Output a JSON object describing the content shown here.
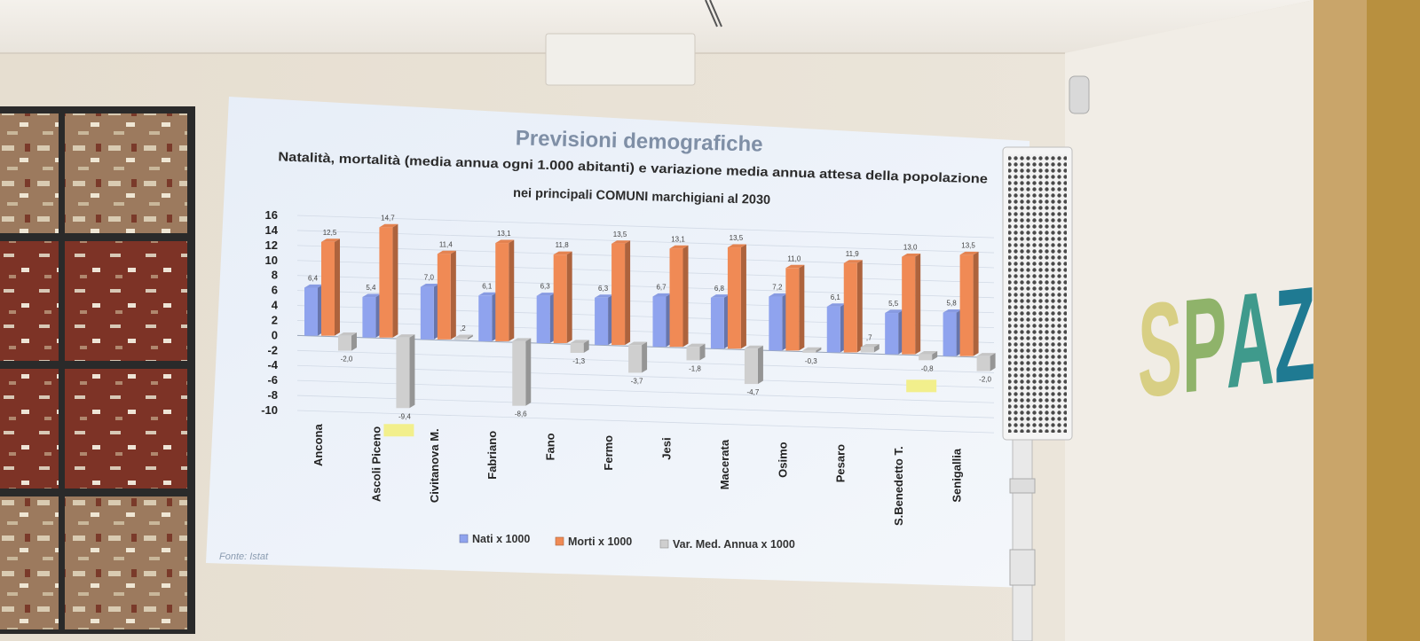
{
  "slide": {
    "title": "Previsioni demografiche",
    "subtitle_line1": "Natalità, mortalità (media annua ogni 1.000 abitanti) e variazione media annua attesa della popolazione",
    "subtitle_line2": "nei principali COMUNI marchigiani al 2030",
    "source": "Fonte: Istat"
  },
  "wall": {
    "brand_text": "SPAZ",
    "brand_colors": [
      "#d8cf84",
      "#8fb36a",
      "#3f9a8c",
      "#1f7a92"
    ]
  },
  "chart_data": {
    "type": "bar",
    "title": "Previsioni demografiche",
    "subtitle": "Natalità, mortalità (media annua ogni 1.000 abitanti) e variazione media annua attesa della popolazione nei principali COMUNI marchigiani al 2030",
    "categories": [
      "Ancona",
      "Ascoli Piceno",
      "Civitanova M.",
      "Fabriano",
      "Fano",
      "Fermo",
      "Jesi",
      "Macerata",
      "Osimo",
      "Pesaro",
      "S.Benedetto T.",
      "Senigallia"
    ],
    "series": [
      {
        "name": "Nati x 1000",
        "color": "#8fa3ee",
        "values": [
          6.4,
          5.4,
          7.0,
          6.1,
          6.3,
          6.3,
          6.7,
          6.8,
          7.2,
          6.1,
          5.5,
          5.8
        ],
        "labels": [
          "6,4",
          "5,4",
          "7,0",
          "6,1",
          "6,3",
          "6,3",
          "6,7",
          "6,8",
          "7,2",
          "6,1",
          "5,5",
          "5,8"
        ]
      },
      {
        "name": "Morti x 1000",
        "color": "#f08a55",
        "values": [
          12.5,
          14.7,
          11.4,
          13.1,
          11.8,
          13.5,
          13.1,
          13.5,
          11.0,
          11.9,
          13.0,
          13.5
        ],
        "labels": [
          "12,5",
          "14,7",
          "11,4",
          "13,1",
          "11,8",
          "13,5",
          "13,1",
          "13,5",
          "11,0",
          "11,9",
          "13,0",
          "13,5"
        ]
      },
      {
        "name": "Var. Med. Annua x 1000",
        "color": "#cfcfcf",
        "values": [
          -2.0,
          -9.4,
          0.2,
          -8.6,
          -1.3,
          -3.7,
          -1.8,
          -4.7,
          -0.3,
          0.7,
          -0.8,
          -2.0
        ],
        "labels": [
          "-2,0",
          "-9,4",
          ",2",
          "-8,6",
          "-1,3",
          "-3,7",
          "-1,8",
          "-4,7",
          "-0,3",
          ",7",
          "-0,8",
          "-2,0"
        ]
      }
    ],
    "y_ticks": [
      "16",
      "14",
      "12",
      "10",
      "8",
      "6",
      "4",
      "2",
      "0",
      "-2",
      "-4",
      "-6",
      "-8",
      "-10"
    ],
    "ylim": [
      -10,
      16
    ],
    "grid": true,
    "legend_position": "bottom",
    "highlighted_categories": [
      "Ascoli Piceno",
      "S.Benedetto T."
    ],
    "highlight_color": "#f2ef8c"
  }
}
